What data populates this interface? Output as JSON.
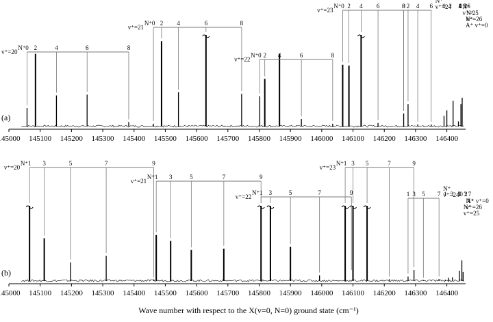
{
  "chart_data": [
    {
      "type": "line",
      "panel_label": "(a)",
      "x_ticks": [
        145000,
        145100,
        145200,
        145300,
        145400,
        145500,
        145600,
        145700,
        145800,
        145900,
        146000,
        146100,
        146200,
        146300,
        146400
      ],
      "xlim": [
        145000,
        146460
      ],
      "peaks": [
        {
          "x": 145058,
          "h": 0.27
        },
        {
          "x": 145085,
          "h": 0.96
        },
        {
          "x": 145152,
          "h": 0.43
        },
        {
          "x": 145250,
          "h": 0.44
        },
        {
          "x": 145383,
          "h": 0.09
        },
        {
          "x": 145462,
          "h": 0.07
        },
        {
          "x": 145488,
          "h": 1.12
        },
        {
          "x": 145542,
          "h": 0.47
        },
        {
          "x": 145630,
          "h": 1.2
        },
        {
          "x": 145744,
          "h": 0.45
        },
        {
          "x": 145802,
          "h": 0.42
        },
        {
          "x": 145818,
          "h": 0.64
        },
        {
          "x": 145865,
          "h": 0.96
        },
        {
          "x": 145935,
          "h": 0.13
        },
        {
          "x": 146035,
          "h": 0.07
        },
        {
          "x": 146067,
          "h": 0.82
        },
        {
          "x": 146087,
          "h": 0.81
        },
        {
          "x": 146126,
          "h": 1.2
        },
        {
          "x": 146180,
          "h": 0.08
        },
        {
          "x": 146262,
          "h": 0.2
        },
        {
          "x": 146276,
          "h": 0.32
        },
        {
          "x": 146307,
          "h": 0.06
        },
        {
          "x": 146350,
          "h": 0.06
        },
        {
          "x": 146391,
          "h": 0.17
        },
        {
          "x": 146400,
          "h": 0.24
        },
        {
          "x": 146420,
          "h": 0.36
        },
        {
          "x": 146437,
          "h": 0.1
        },
        {
          "x": 146445,
          "h": 0.32
        },
        {
          "x": 146449,
          "h": 0.4
        }
      ],
      "progressions": [
        {
          "v_label": "v⁺=20",
          "N_label": "N⁺",
          "start": 145058,
          "end": 145383,
          "lines": [
            {
              "x": 145058,
              "n": "0"
            },
            {
              "x": 145085,
              "n": "2"
            },
            {
              "x": 145152,
              "n": "4"
            },
            {
              "x": 145250,
              "n": "6"
            },
            {
              "x": 145383,
              "n": "8"
            }
          ]
        },
        {
          "v_label": "v⁺=21",
          "N_label": "N⁺",
          "start": 145462,
          "end": 145744,
          "lines": [
            {
              "x": 145462,
              "n": "0"
            },
            {
              "x": 145488,
              "n": "2"
            },
            {
              "x": 145542,
              "n": "4"
            },
            {
              "x": 145630,
              "n": "6"
            },
            {
              "x": 145744,
              "n": "8"
            }
          ]
        },
        {
          "v_label": "v⁺=22",
          "N_label": "N⁺",
          "start": 145802,
          "end": 146035,
          "lines": [
            {
              "x": 145802,
              "n": "0"
            },
            {
              "x": 145818,
              "n": "2"
            },
            {
              "x": 145865,
              "n": "4"
            },
            {
              "x": 145935,
              "n": "6"
            },
            {
              "x": 146035,
              "n": "8"
            }
          ]
        },
        {
          "v_label": "v⁺=23",
          "N_label": "N⁺",
          "start": 146067,
          "end": 146262,
          "lines": [
            {
              "x": 146067,
              "n": "0"
            },
            {
              "x": 146087,
              "n": "2"
            },
            {
              "x": 146126,
              "n": "4"
            },
            {
              "x": 146180,
              "n": "6"
            },
            {
              "x": 146262,
              "n": "8"
            }
          ]
        },
        {
          "v_label": "v⁺=24",
          "N_label": "N⁺",
          "start": 146262,
          "end": 146350,
          "lines": [
            {
              "x": 146262,
              "n": "0"
            },
            {
              "x": 146276,
              "n": "2"
            },
            {
              "x": 146307,
              "n": "4"
            },
            {
              "x": 146350,
              "n": "6"
            }
          ]
        },
        {
          "v_label": "v⁺=25",
          "N_label": "N⁺",
          "start": 146391,
          "end": 146437,
          "lines": [
            {
              "x": 146391,
              "n": "0"
            },
            {
              "x": 146400,
              "n": "2"
            },
            {
              "x": 146420,
              "n": "4"
            },
            {
              "x": 146437,
              "n": "6"
            }
          ]
        },
        {
          "v_label": "v⁺=26",
          "N_label": "N⁺",
          "start": 146445,
          "end": 146449,
          "lines": [
            {
              "x": 146445,
              "n": "0"
            },
            {
              "x": 146449,
              "n": "2"
            }
          ]
        },
        {
          "v_label": "A⁺ v⁺=0",
          "N_label": "N⁺",
          "start": 146441,
          "end": 146447,
          "lines": [
            {
              "x": 146441,
              "n": "1"
            },
            {
              "x": 146447,
              "n": "3"
            }
          ]
        }
      ]
    },
    {
      "type": "line",
      "panel_label": "(b)",
      "x_ticks": [
        145000,
        145100,
        145200,
        145300,
        145400,
        145500,
        145600,
        145700,
        145800,
        145900,
        146000,
        146100,
        146200,
        146300,
        146400
      ],
      "xlim": [
        145000,
        146460
      ],
      "peaks": [
        {
          "x": 145066,
          "h": 1.2
        },
        {
          "x": 145113,
          "h": 0.7
        },
        {
          "x": 145197,
          "h": 0.33
        },
        {
          "x": 145311,
          "h": 0.43
        },
        {
          "x": 145463,
          "h": 0.06
        },
        {
          "x": 145471,
          "h": 0.75
        },
        {
          "x": 145517,
          "h": 0.66
        },
        {
          "x": 145583,
          "h": 0.52
        },
        {
          "x": 145687,
          "h": 0.54
        },
        {
          "x": 145806,
          "h": 1.2
        },
        {
          "x": 145836,
          "h": 1.2
        },
        {
          "x": 145900,
          "h": 0.57
        },
        {
          "x": 145993,
          "h": 0.13
        },
        {
          "x": 146075,
          "h": 1.2
        },
        {
          "x": 146100,
          "h": 1.2
        },
        {
          "x": 146145,
          "h": 1.2
        },
        {
          "x": 146216,
          "h": 0.07
        },
        {
          "x": 146276,
          "h": 0.11
        },
        {
          "x": 146295,
          "h": 0.21
        },
        {
          "x": 146325,
          "h": 0.05
        },
        {
          "x": 146375,
          "h": 0.07
        },
        {
          "x": 146395,
          "h": 0.06
        },
        {
          "x": 146405,
          "h": 0.09
        },
        {
          "x": 146418,
          "h": 0.1
        },
        {
          "x": 146440,
          "h": 0.2
        },
        {
          "x": 146448,
          "h": 0.36
        },
        {
          "x": 146452,
          "h": 0.18
        }
      ],
      "progressions": [
        {
          "v_label": "v⁺=20",
          "N_label": "N⁺",
          "start": 145066,
          "end": 145463,
          "lines": [
            {
              "x": 145066,
              "n": "1"
            },
            {
              "x": 145113,
              "n": "3"
            },
            {
              "x": 145197,
              "n": "5"
            },
            {
              "x": 145311,
              "n": "7"
            },
            {
              "x": 145463,
              "n": "9"
            }
          ]
        },
        {
          "v_label": "v⁺=21",
          "N_label": "N⁺",
          "start": 145471,
          "end": 145806,
          "lines": [
            {
              "x": 145471,
              "n": "1"
            },
            {
              "x": 145517,
              "n": "3"
            },
            {
              "x": 145583,
              "n": "5"
            },
            {
              "x": 145687,
              "n": "7"
            },
            {
              "x": 145806,
              "n": "9"
            }
          ]
        },
        {
          "v_label": "v⁺=22",
          "N_label": "N⁺",
          "start": 145806,
          "end": 146095,
          "lines": [
            {
              "x": 145806,
              "n": "1"
            },
            {
              "x": 145836,
              "n": "3"
            },
            {
              "x": 145900,
              "n": "5"
            },
            {
              "x": 145993,
              "n": "7"
            },
            {
              "x": 146095,
              "n": "9"
            }
          ]
        },
        {
          "v_label": "v⁺=23",
          "N_label": "N⁺",
          "start": 146075,
          "end": 146295,
          "lines": [
            {
              "x": 146075,
              "n": "1"
            },
            {
              "x": 146100,
              "n": "3"
            },
            {
              "x": 146145,
              "n": "5"
            },
            {
              "x": 146216,
              "n": "7"
            },
            {
              "x": 146295,
              "n": "9"
            }
          ]
        },
        {
          "v_label": "v⁺=24",
          "N_label": "N⁺",
          "start": 146276,
          "end": 146375,
          "lines": [
            {
              "x": 146276,
              "n": "1"
            },
            {
              "x": 146295,
              "n": "3"
            },
            {
              "x": 146325,
              "n": "5"
            },
            {
              "x": 146375,
              "n": "7"
            }
          ]
        },
        {
          "v_label": "A⁺ v⁺=0",
          "N_label": "",
          "start": 146446,
          "end": 146450,
          "lines": [
            {
              "x": 146446,
              "n": "0"
            },
            {
              "x": 146450,
              "n": "2"
            }
          ]
        },
        {
          "v_label": "v⁺=26",
          "N_label": "N⁺",
          "start": 146440,
          "end": 146448,
          "lines": [
            {
              "x": 146440,
              "n": "1"
            },
            {
              "x": 146448,
              "n": "3"
            }
          ]
        },
        {
          "v_label": "v⁺=25",
          "N_label": "N⁺",
          "start": 146395,
          "end": 146440,
          "lines": [
            {
              "x": 146395,
              "n": "1"
            },
            {
              "x": 146405,
              "n": "3"
            },
            {
              "x": 146418,
              "n": "5"
            },
            {
              "x": 146440,
              "n": "7"
            }
          ]
        }
      ]
    }
  ],
  "xlabel": "Wave number with respect to the X(v=0, N=0) ground state (cm⁻¹)"
}
